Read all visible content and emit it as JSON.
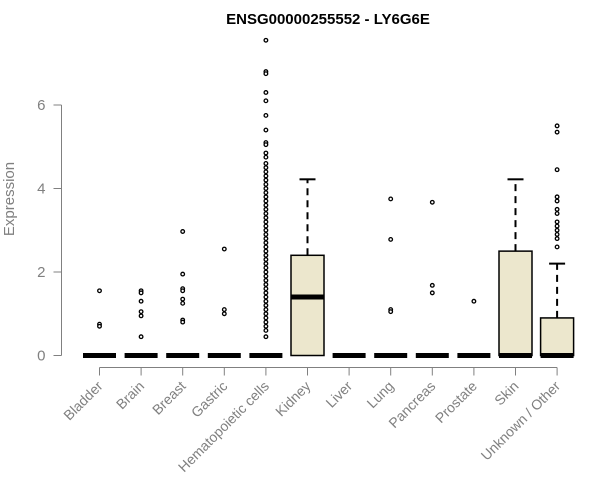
{
  "chart_data": {
    "type": "boxplot",
    "title": "ENSG00000255552 - LY6G6E",
    "xlabel": "",
    "ylabel": "Expression",
    "ylim": [
      0,
      7.6
    ],
    "yticks": [
      0,
      2,
      4,
      6
    ],
    "grid": false,
    "colors": {
      "box_fill": "#ece7cd",
      "stroke": "#000000",
      "axis": "#808080"
    },
    "categories": [
      "Bladder",
      "Brain",
      "Breast",
      "Gastric",
      "Hematopoietic cells",
      "Kidney",
      "Liver",
      "Lung",
      "Pancreas",
      "Prostate",
      "Skin",
      "Unknown / Other"
    ],
    "boxes": [
      {
        "label": "Bladder",
        "q1": 0,
        "median": 0,
        "q3": 0,
        "whisker_low": 0,
        "whisker_high": 0,
        "outliers": [
          1.55,
          0.75,
          0.7
        ]
      },
      {
        "label": "Brain",
        "q1": 0,
        "median": 0,
        "q3": 0,
        "whisker_low": 0,
        "whisker_high": 0,
        "outliers": [
          1.55,
          1.5,
          1.3,
          1.05,
          0.95,
          0.45
        ]
      },
      {
        "label": "Breast",
        "q1": 0,
        "median": 0,
        "q3": 0,
        "whisker_low": 0,
        "whisker_high": 0,
        "outliers": [
          2.97,
          1.95,
          1.6,
          1.55,
          1.35,
          1.25,
          0.85,
          0.8
        ]
      },
      {
        "label": "Gastric",
        "q1": 0,
        "median": 0,
        "q3": 0,
        "whisker_low": 0,
        "whisker_high": 0,
        "outliers": [
          2.55,
          1.1,
          1.0
        ]
      },
      {
        "label": "Hematopoietic cells",
        "q1": 0,
        "median": 0,
        "q3": 0,
        "whisker_low": 0,
        "whisker_high": 0,
        "outliers": [
          7.55,
          6.8,
          6.75,
          6.3,
          6.1,
          5.75,
          5.4,
          5.1,
          5.05,
          4.85,
          4.75,
          4.6,
          4.5,
          4.4,
          4.3,
          4.2,
          4.1,
          4.0,
          3.9,
          3.8,
          3.7,
          3.6,
          3.5,
          3.4,
          3.3,
          3.2,
          3.1,
          3.0,
          2.9,
          2.8,
          2.7,
          2.6,
          2.5,
          2.4,
          2.3,
          2.2,
          2.1,
          2.0,
          1.9,
          1.8,
          1.7,
          1.6,
          1.5,
          1.4,
          1.3,
          1.2,
          1.1,
          1.0,
          0.9,
          0.8,
          0.7,
          0.6,
          0.45
        ]
      },
      {
        "label": "Kidney",
        "q1": 0,
        "median": 1.4,
        "q3": 2.4,
        "whisker_low": 0,
        "whisker_high": 4.22,
        "outliers": []
      },
      {
        "label": "Liver",
        "q1": 0,
        "median": 0,
        "q3": 0,
        "whisker_low": 0,
        "whisker_high": 0,
        "outliers": []
      },
      {
        "label": "Lung",
        "q1": 0,
        "median": 0,
        "q3": 0,
        "whisker_low": 0,
        "whisker_high": 0,
        "outliers": [
          3.75,
          2.78,
          1.1,
          1.05
        ]
      },
      {
        "label": "Pancreas",
        "q1": 0,
        "median": 0,
        "q3": 0,
        "whisker_low": 0,
        "whisker_high": 0,
        "outliers": [
          3.67,
          1.68,
          1.5
        ]
      },
      {
        "label": "Prostate",
        "q1": 0,
        "median": 0,
        "q3": 0,
        "whisker_low": 0,
        "whisker_high": 0,
        "outliers": [
          1.3
        ]
      },
      {
        "label": "Skin",
        "q1": 0,
        "median": 0,
        "q3": 2.5,
        "whisker_low": 0,
        "whisker_high": 4.22,
        "outliers": []
      },
      {
        "label": "Unknown / Other",
        "q1": 0,
        "median": 0,
        "q3": 0.9,
        "whisker_low": 0,
        "whisker_high": 2.2,
        "outliers": [
          5.5,
          5.35,
          4.45,
          3.8,
          3.7,
          3.5,
          3.4,
          3.2,
          3.1,
          3.0,
          2.9,
          2.8,
          2.6
        ]
      }
    ]
  }
}
